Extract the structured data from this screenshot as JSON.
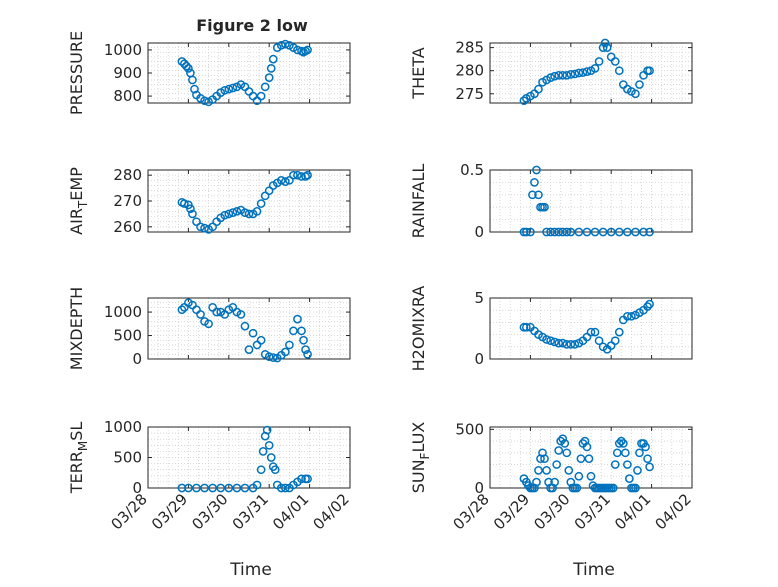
{
  "chart_data": {
    "title": "Figure 2 low",
    "type": "scatter",
    "xlabel": "Time",
    "xticks": [
      "03/28",
      "03/29",
      "03/30",
      "03/31",
      "04/01",
      "04/02"
    ],
    "xlim": [
      0,
      5
    ],
    "grid": true,
    "minor_grid": true,
    "panels": [
      {
        "key": "pressure",
        "ylabel": "PRESSURE",
        "ylim": [
          770,
          1030
        ],
        "yticks": [
          800,
          900,
          1000
        ],
        "x": [
          0.84,
          0.9,
          0.95,
          1.0,
          1.05,
          1.1,
          1.15,
          1.2,
          1.3,
          1.4,
          1.5,
          1.6,
          1.7,
          1.8,
          1.9,
          2.0,
          2.1,
          2.2,
          2.3,
          2.4,
          2.5,
          2.6,
          2.7,
          2.8,
          2.9,
          3.0,
          3.05,
          3.1,
          3.2,
          3.3,
          3.4,
          3.5,
          3.6,
          3.7,
          3.8,
          3.85,
          3.9,
          3.95
        ],
        "y": [
          950,
          940,
          930,
          920,
          900,
          870,
          830,
          805,
          790,
          780,
          775,
          785,
          800,
          815,
          825,
          830,
          835,
          840,
          850,
          840,
          820,
          800,
          780,
          800,
          840,
          880,
          920,
          960,
          1010,
          1020,
          1025,
          1020,
          1010,
          1000,
          995,
          990,
          995,
          1000
        ]
      },
      {
        "key": "theta",
        "ylabel": "THETA",
        "ylim": [
          273,
          286
        ],
        "yticks": [
          275,
          280,
          285
        ],
        "x": [
          0.84,
          0.9,
          1.0,
          1.1,
          1.2,
          1.3,
          1.4,
          1.5,
          1.6,
          1.7,
          1.8,
          1.9,
          2.0,
          2.1,
          2.2,
          2.3,
          2.4,
          2.5,
          2.6,
          2.7,
          2.8,
          2.85,
          2.9,
          3.0,
          3.1,
          3.2,
          3.3,
          3.4,
          3.5,
          3.6,
          3.7,
          3.8,
          3.9,
          3.95
        ],
        "y": [
          273.5,
          274,
          274.5,
          275,
          276,
          277.5,
          278,
          278.5,
          278.8,
          279,
          279,
          279,
          279.2,
          279.3,
          279.5,
          279.6,
          279.8,
          280,
          280.5,
          282,
          285,
          286,
          285,
          283,
          282,
          280,
          277,
          276,
          275.5,
          275,
          277,
          279,
          280,
          280
        ]
      },
      {
        "key": "air_temp",
        "ylabel": "AIR_TEMP",
        "ylim": [
          258,
          282
        ],
        "yticks": [
          260,
          270,
          280
        ],
        "x": [
          0.84,
          0.9,
          1.0,
          1.05,
          1.1,
          1.2,
          1.3,
          1.4,
          1.5,
          1.6,
          1.7,
          1.8,
          1.9,
          2.0,
          2.1,
          2.2,
          2.3,
          2.4,
          2.5,
          2.6,
          2.7,
          2.8,
          2.9,
          3.0,
          3.1,
          3.2,
          3.3,
          3.4,
          3.5,
          3.6,
          3.7,
          3.8,
          3.9,
          3.95
        ],
        "y": [
          269.5,
          269,
          268.5,
          267,
          265,
          262,
          260,
          259.5,
          259,
          260,
          262,
          263.5,
          264.5,
          265,
          265.5,
          266,
          266.5,
          265.5,
          265,
          265,
          266,
          269,
          272,
          274,
          276,
          277,
          278,
          277.5,
          278,
          280,
          280,
          279.5,
          279.5,
          280
        ]
      },
      {
        "key": "rainfall",
        "ylabel": "RAINFALL",
        "ylim": [
          0,
          0.5
        ],
        "yticks": [
          0,
          0.5
        ],
        "x": [
          0.84,
          0.9,
          1.0,
          1.05,
          1.1,
          1.15,
          1.2,
          1.25,
          1.3,
          1.35,
          1.4,
          1.5,
          1.6,
          1.7,
          1.8,
          1.9,
          2.0,
          2.2,
          2.4,
          2.6,
          2.8,
          3.0,
          3.2,
          3.4,
          3.6,
          3.8,
          3.95
        ],
        "y": [
          0,
          0,
          0,
          0.3,
          0.4,
          0.5,
          0.3,
          0.2,
          0.2,
          0.2,
          0,
          0,
          0,
          0,
          0,
          0,
          0,
          0,
          0,
          0,
          0,
          0,
          0,
          0,
          0,
          0,
          0
        ]
      },
      {
        "key": "mixdepth",
        "ylabel": "MIXDEPTH",
        "ylim": [
          0,
          1300
        ],
        "yticks": [
          0,
          500,
          1000
        ],
        "x": [
          0.84,
          0.9,
          1.0,
          1.1,
          1.2,
          1.3,
          1.4,
          1.5,
          1.6,
          1.7,
          1.8,
          1.9,
          2.0,
          2.1,
          2.2,
          2.3,
          2.4,
          2.5,
          2.6,
          2.7,
          2.8,
          2.9,
          3.0,
          3.1,
          3.2,
          3.3,
          3.4,
          3.5,
          3.6,
          3.7,
          3.8,
          3.85,
          3.9,
          3.95
        ],
        "y": [
          1050,
          1100,
          1200,
          1150,
          1050,
          950,
          800,
          750,
          1100,
          1000,
          1000,
          950,
          1050,
          1100,
          1000,
          950,
          700,
          200,
          550,
          300,
          400,
          100,
          50,
          30,
          20,
          80,
          150,
          300,
          600,
          850,
          600,
          400,
          200,
          100
        ]
      },
      {
        "key": "h2omixra",
        "ylabel": "H2OMIXRA",
        "ylim": [
          0,
          5
        ],
        "yticks": [
          0,
          5
        ],
        "x": [
          0.84,
          0.9,
          1.0,
          1.1,
          1.2,
          1.3,
          1.4,
          1.5,
          1.6,
          1.7,
          1.8,
          1.9,
          2.0,
          2.1,
          2.2,
          2.3,
          2.4,
          2.5,
          2.6,
          2.7,
          2.8,
          2.9,
          3.0,
          3.1,
          3.2,
          3.3,
          3.4,
          3.5,
          3.6,
          3.7,
          3.8,
          3.9,
          3.95
        ],
        "y": [
          2.6,
          2.6,
          2.6,
          2.3,
          2.0,
          1.8,
          1.6,
          1.5,
          1.4,
          1.3,
          1.3,
          1.2,
          1.2,
          1.2,
          1.3,
          1.5,
          1.8,
          2.2,
          2.2,
          1.5,
          1.0,
          0.8,
          1.1,
          1.5,
          2.2,
          3.2,
          3.5,
          3.5,
          3.6,
          3.8,
          4.0,
          4.3,
          4.5
        ]
      },
      {
        "key": "terr_msl",
        "ylabel": "TERR_MSL",
        "ylim": [
          0,
          1000
        ],
        "yticks": [
          0,
          500,
          1000
        ],
        "x": [
          0.84,
          1.0,
          1.2,
          1.4,
          1.6,
          1.8,
          2.0,
          2.2,
          2.4,
          2.6,
          2.7,
          2.8,
          2.85,
          2.9,
          2.95,
          3.0,
          3.05,
          3.1,
          3.15,
          3.2,
          3.3,
          3.4,
          3.5,
          3.6,
          3.7,
          3.8,
          3.9,
          3.95
        ],
        "y": [
          0,
          0,
          0,
          0,
          0,
          0,
          0,
          0,
          0,
          0,
          50,
          300,
          600,
          850,
          950,
          700,
          500,
          350,
          300,
          50,
          0,
          0,
          0,
          50,
          100,
          150,
          150,
          150
        ]
      },
      {
        "key": "sun_flux",
        "ylabel": "SUN_FLUX",
        "ylim": [
          0,
          520
        ],
        "yticks": [
          0,
          500
        ],
        "x": [
          0.84,
          0.9,
          0.95,
          1.0,
          1.05,
          1.1,
          1.15,
          1.2,
          1.25,
          1.3,
          1.35,
          1.4,
          1.45,
          1.5,
          1.55,
          1.6,
          1.65,
          1.7,
          1.75,
          1.8,
          1.85,
          1.9,
          1.95,
          2.0,
          2.05,
          2.1,
          2.15,
          2.2,
          2.25,
          2.3,
          2.35,
          2.4,
          2.45,
          2.5,
          2.55,
          2.6,
          2.65,
          2.7,
          2.75,
          2.8,
          2.85,
          2.9,
          2.95,
          3.0,
          3.05,
          3.1,
          3.15,
          3.2,
          3.25,
          3.3,
          3.35,
          3.4,
          3.45,
          3.5,
          3.55,
          3.6,
          3.65,
          3.7,
          3.75,
          3.8,
          3.85,
          3.9,
          3.95
        ],
        "y": [
          80,
          50,
          20,
          0,
          0,
          0,
          50,
          150,
          250,
          300,
          250,
          150,
          50,
          0,
          0,
          50,
          200,
          320,
          400,
          420,
          380,
          300,
          150,
          50,
          0,
          0,
          0,
          100,
          250,
          380,
          400,
          350,
          250,
          100,
          20,
          0,
          0,
          0,
          0,
          0,
          0,
          0,
          0,
          0,
          0,
          200,
          300,
          380,
          400,
          380,
          300,
          200,
          80,
          0,
          0,
          0,
          150,
          300,
          380,
          380,
          350,
          250,
          180
        ]
      }
    ]
  },
  "ylabel_parts": {
    "pressure": {
      "base": "PRESSURE"
    },
    "theta": {
      "base": "THETA"
    },
    "air_temp": {
      "base": "AIR",
      "sub": "T",
      "after": "EMP"
    },
    "rainfall": {
      "base": "RAINFALL"
    },
    "mixdepth": {
      "base": "MIXDEPTH"
    },
    "h2omixra": {
      "base": "H2OMIXRA"
    },
    "terr_msl": {
      "base": "TERR",
      "sub": "M",
      "after": "SL"
    },
    "sun_flux": {
      "base": "SUN",
      "sub": "F",
      "after": "LUX"
    }
  }
}
